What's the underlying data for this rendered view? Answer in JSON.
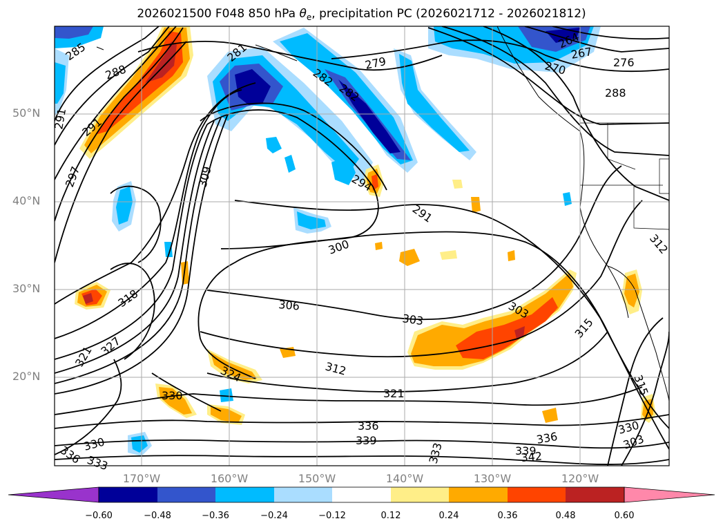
{
  "title": {
    "prefix": "2026021500 F048 850 hPa ",
    "theta": "θ",
    "theta_sub": "e",
    "suffix": ", precipitation PC (2026021712 - 2026021812)"
  },
  "lat_labels": [
    "50°N",
    "40°N",
    "30°N",
    "20°N"
  ],
  "lon_labels": [
    "170°W",
    "160°W",
    "150°W",
    "140°W",
    "130°W",
    "120°W"
  ],
  "colorbar": {
    "labels": [
      "−0.60",
      "−0.48",
      "−0.36",
      "−0.24",
      "−0.12",
      "0.12",
      "0.24",
      "0.36",
      "0.48",
      "0.60"
    ],
    "colors": [
      "#9933cc",
      "#000099",
      "#3355cc",
      "#00bbff",
      "#aaddff",
      "#ffffff",
      "#ffee88",
      "#ffaa00",
      "#ff4400",
      "#bb2222",
      "#ff88aa"
    ]
  },
  "contour_labels": [
    "285",
    "288",
    "279",
    "282",
    "282",
    "281",
    "264",
    "267",
    "270",
    "276",
    "288",
    "291",
    "291",
    "297",
    "309",
    "294",
    "291",
    "300",
    "312",
    "306",
    "303",
    "303",
    "318",
    "327",
    "321",
    "324",
    "312",
    "321",
    "315",
    "315",
    "330",
    "336",
    "339",
    "336",
    "339",
    "342",
    "330",
    "303",
    "330",
    "336",
    "333",
    "333"
  ]
}
